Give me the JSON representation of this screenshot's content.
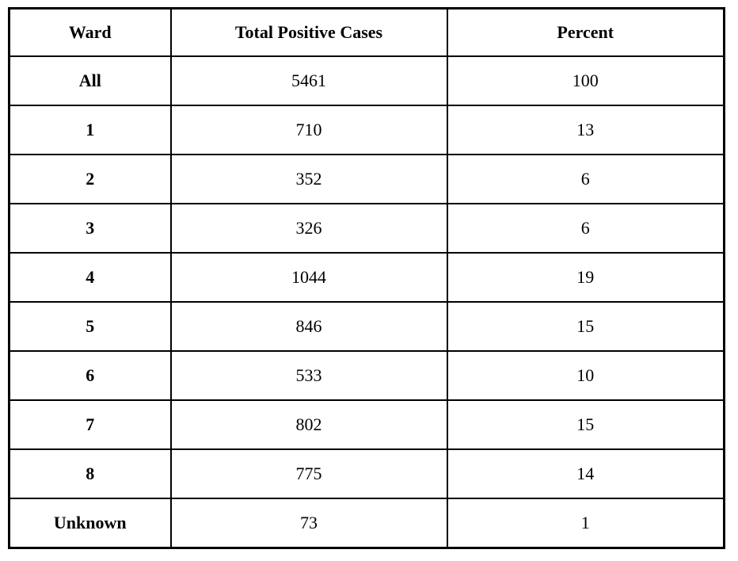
{
  "table": {
    "columns": [
      "Ward",
      "Total Positive Cases",
      "Percent"
    ],
    "rows": [
      {
        "ward": "All",
        "cases": "5461",
        "percent": "100"
      },
      {
        "ward": "1",
        "cases": "710",
        "percent": "13"
      },
      {
        "ward": "2",
        "cases": "352",
        "percent": "6"
      },
      {
        "ward": "3",
        "cases": "326",
        "percent": "6"
      },
      {
        "ward": "4",
        "cases": "1044",
        "percent": "19"
      },
      {
        "ward": "5",
        "cases": "846",
        "percent": "15"
      },
      {
        "ward": "6",
        "cases": "533",
        "percent": "10"
      },
      {
        "ward": "7",
        "cases": "802",
        "percent": "15"
      },
      {
        "ward": "8",
        "cases": "775",
        "percent": "14"
      },
      {
        "ward": "Unknown",
        "cases": "73",
        "percent": "1"
      }
    ]
  },
  "chart_data": {
    "type": "table",
    "title": "",
    "columns": [
      "Ward",
      "Total Positive Cases",
      "Percent"
    ],
    "categories": [
      "All",
      "1",
      "2",
      "3",
      "4",
      "5",
      "6",
      "7",
      "8",
      "Unknown"
    ],
    "series": [
      {
        "name": "Total Positive Cases",
        "values": [
          5461,
          710,
          352,
          326,
          1044,
          846,
          533,
          802,
          775,
          73
        ]
      },
      {
        "name": "Percent",
        "values": [
          100,
          13,
          6,
          6,
          19,
          15,
          10,
          15,
          14,
          1
        ]
      }
    ]
  },
  "colors": {
    "border": "#000000",
    "background": "#ffffff",
    "text": "#000000"
  }
}
